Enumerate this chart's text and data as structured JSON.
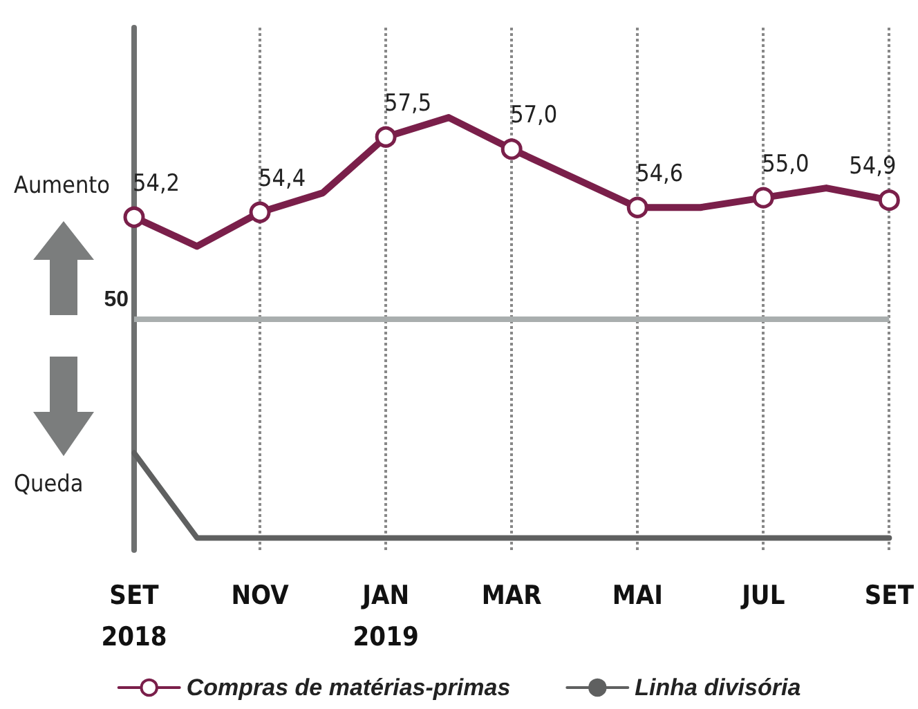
{
  "chart_data": {
    "type": "line",
    "categories": [
      "SET\n2018",
      null,
      "NOV",
      null,
      "JAN\n2019",
      null,
      "MAR",
      null,
      "MAI",
      null,
      "JUL",
      null,
      "SET"
    ],
    "series": [
      {
        "name": "Compras de matérias-primas",
        "color": "#7a1f4a",
        "marker": "circle",
        "values": [
          54.2,
          53.0,
          54.4,
          55.2,
          57.5,
          58.3,
          57.0,
          55.8,
          54.6,
          54.6,
          55.0,
          55.4,
          54.9
        ],
        "value_labels": [
          "54,2",
          null,
          "54,4",
          null,
          "57,5",
          null,
          "57,0",
          null,
          "54,6",
          null,
          "55,0",
          null,
          "54,9"
        ]
      },
      {
        "name": "Linha divisória",
        "color": "#5f6060",
        "marker": "none",
        "values": [
          44.5,
          41.0,
          41.0,
          41.0,
          41.0,
          41.0,
          41.0,
          41.0,
          41.0,
          41.0,
          41.0,
          41.0,
          41.0
        ]
      }
    ],
    "ylim": [
      40.5,
      62
    ],
    "ref_lines": [
      {
        "axis": "y",
        "value": 50,
        "label": "50",
        "color": "#a9aeae"
      }
    ],
    "annotations": [
      "Aumento",
      "Queda"
    ],
    "grid": "x",
    "line_style": "solid",
    "legend": "bottom",
    "tick_labels": "x"
  }
}
